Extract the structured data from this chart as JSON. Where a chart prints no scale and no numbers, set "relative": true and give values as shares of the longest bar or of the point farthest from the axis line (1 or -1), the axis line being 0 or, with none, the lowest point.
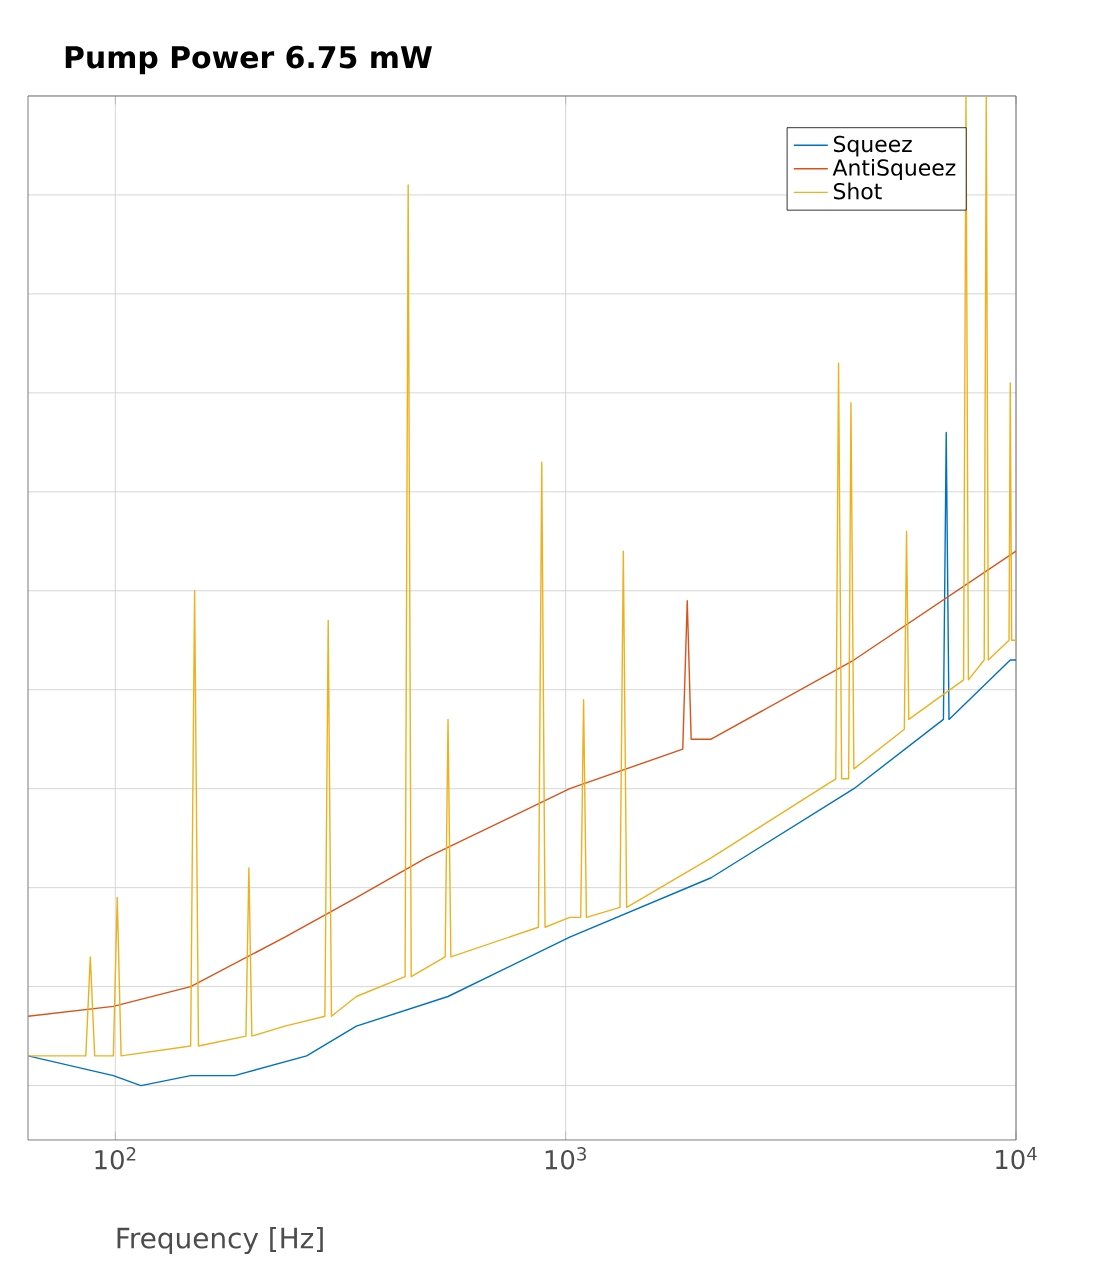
{
  "chart_data": {
    "type": "line",
    "title": "Pump Power 6.75 mW",
    "xlabel": "Frequency  [Hz]",
    "log": "x",
    "grid": true,
    "legend": "top right",
    "relative": true,
    "tick_labels": "x",
    "marker": "none",
    "line_style": "solid",
    "xlim": [
      64,
      10000
    ],
    "xticks": [
      {
        "value": 100,
        "label": "10$^{2}$"
      },
      {
        "value": 1000,
        "label": "10$^{3}$"
      },
      {
        "value": 10000,
        "label": "10$^{4}$"
      }
    ],
    "series": [
      {
        "name": "Squeez",
        "color": "#0072bd",
        "x": [
          64,
          99,
          114,
          147,
          184,
          266,
          343,
          548,
          1021,
          2104,
          4365,
          6900,
          7000,
          7100,
          9710,
          10000
        ],
        "values": [
          0.03,
          0.01,
          0.0,
          0.01,
          0.01,
          0.03,
          0.06,
          0.09,
          0.15,
          0.21,
          0.3,
          0.37,
          0.66,
          0.37,
          0.43,
          0.43
        ]
      },
      {
        "name": "AntiSqueez",
        "color": "#d95319",
        "x": [
          64,
          99,
          147,
          238,
          343,
          490,
          1021,
          1820,
          1862,
          1900,
          2104,
          4365,
          10000
        ],
        "values": [
          0.07,
          0.08,
          0.1,
          0.15,
          0.19,
          0.23,
          0.3,
          0.34,
          0.49,
          0.35,
          0.35,
          0.43,
          0.54
        ]
      },
      {
        "name": "Shot",
        "color": "#edb120",
        "x": [
          64,
          86,
          88,
          90,
          99,
          101,
          103,
          147,
          150,
          153,
          195,
          198,
          201,
          238,
          292,
          297,
          302,
          343,
          440,
          447,
          454,
          540,
          548,
          556,
          870,
          885,
          900,
          1021,
          1080,
          1096,
          1112,
          1320,
          1343,
          1366,
          2104,
          3980,
          4036,
          4100,
          4250,
          4300,
          4365,
          5650,
          5714,
          5780,
          7650,
          7744,
          7840,
          8500,
          8590,
          8680,
          9650,
          9710,
          9780,
          10000
        ],
        "values": [
          0.03,
          0.03,
          0.13,
          0.03,
          0.03,
          0.19,
          0.03,
          0.04,
          0.5,
          0.04,
          0.05,
          0.22,
          0.05,
          0.06,
          0.07,
          0.47,
          0.07,
          0.09,
          0.11,
          0.91,
          0.11,
          0.13,
          0.37,
          0.13,
          0.16,
          0.63,
          0.16,
          0.17,
          0.17,
          0.39,
          0.17,
          0.18,
          0.54,
          0.18,
          0.23,
          0.31,
          0.73,
          0.31,
          0.31,
          0.69,
          0.32,
          0.36,
          0.56,
          0.37,
          0.41,
          1.0,
          0.41,
          0.43,
          1.0,
          0.43,
          0.45,
          0.71,
          0.45,
          0.45
        ]
      }
    ]
  }
}
